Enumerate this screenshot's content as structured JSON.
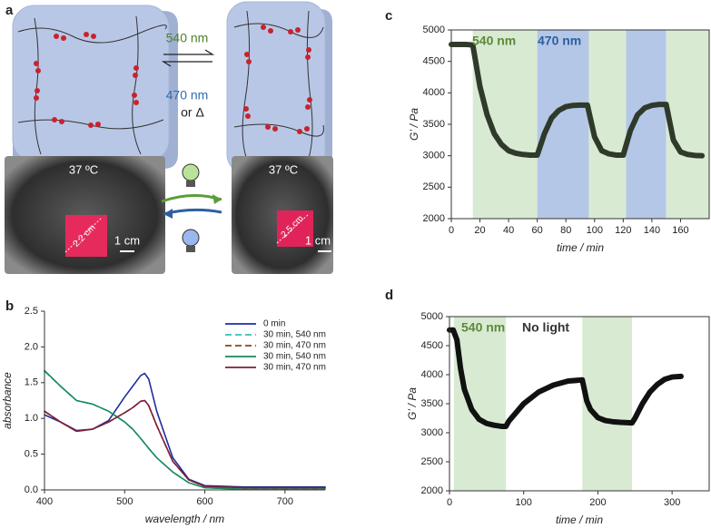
{
  "panel_labels": [
    "a",
    "b",
    "c",
    "d"
  ],
  "panel_a": {
    "forward_label": "540 nm",
    "reverse_label": "470 nm",
    "reverse_alt": "or Δ",
    "temperatures": [
      "37 ºC",
      "37 ºC"
    ],
    "sizes": [
      "2.2 cm",
      "2.5 cm"
    ],
    "scale_bars": [
      "1 cm",
      "1 cm"
    ]
  },
  "chart_data": [
    {
      "type": "line",
      "xlabel": "wavelength / nm",
      "ylabel": "absorbance",
      "x": [
        400,
        420,
        440,
        460,
        480,
        500,
        510,
        520,
        525,
        530,
        540,
        560,
        580,
        600,
        650,
        700,
        750
      ],
      "xlim": [
        400,
        750
      ],
      "xticks": [
        400,
        500,
        600,
        700
      ],
      "ylim": [
        0,
        2.5
      ],
      "yticks": [
        {
          "value": 0,
          "label": "0.0"
        },
        0.5,
        {
          "value": 1,
          "label": "1.0"
        },
        1.5,
        {
          "value": 2,
          "label": "2.0"
        },
        2.5
      ],
      "legend": "upper right",
      "series": [
        {
          "name": "0 min",
          "color": "#1f2ea0",
          "dashed": false,
          "values": [
            1.05,
            0.95,
            0.83,
            0.85,
            0.97,
            1.3,
            1.45,
            1.6,
            1.63,
            1.55,
            1.1,
            0.45,
            0.15,
            0.06,
            0.04,
            0.04,
            0.04
          ]
        },
        {
          "name": "30 min, 540 nm",
          "color": "#2ec4b6",
          "dashed": true,
          "values": [
            1.66,
            1.45,
            1.25,
            1.2,
            1.1,
            0.95,
            0.85,
            0.72,
            0.65,
            0.58,
            0.45,
            0.25,
            0.1,
            0.03,
            0.01,
            0.01,
            0.01
          ]
        },
        {
          "name": "30 min, 470 nm",
          "color": "#8b4513",
          "dashed": true,
          "values": [
            1.1,
            0.95,
            0.82,
            0.85,
            0.95,
            1.08,
            1.15,
            1.24,
            1.25,
            1.18,
            0.9,
            0.4,
            0.14,
            0.05,
            0.03,
            0.03,
            0.03
          ]
        },
        {
          "name": "30 min, 540 nm",
          "color": "#1a8a5a",
          "dashed": false,
          "values": [
            1.67,
            1.45,
            1.25,
            1.2,
            1.1,
            0.95,
            0.85,
            0.72,
            0.65,
            0.58,
            0.45,
            0.25,
            0.1,
            0.03,
            0.01,
            0.01,
            0.01
          ]
        },
        {
          "name": "30 min, 470 nm",
          "color": "#7b1f3a",
          "dashed": false,
          "values": [
            1.1,
            0.95,
            0.82,
            0.85,
            0.95,
            1.08,
            1.15,
            1.24,
            1.25,
            1.18,
            0.9,
            0.4,
            0.14,
            0.05,
            0.03,
            0.03,
            0.03
          ]
        }
      ]
    },
    {
      "type": "line",
      "xlabel": "time / min",
      "ylabel": "G’ / Pa",
      "color": "#2f3a2b",
      "x": [
        0,
        5,
        10,
        15,
        20,
        25,
        30,
        35,
        40,
        45,
        50,
        55,
        60,
        65,
        70,
        75,
        80,
        85,
        90,
        95,
        100,
        105,
        110,
        115,
        120,
        125,
        130,
        135,
        140,
        145,
        150,
        155,
        160,
        165,
        170,
        175
      ],
      "values": [
        4770,
        4770,
        4770,
        4760,
        4100,
        3650,
        3350,
        3180,
        3080,
        3040,
        3020,
        3010,
        3010,
        3350,
        3600,
        3720,
        3780,
        3800,
        3805,
        3805,
        3300,
        3080,
        3030,
        3010,
        3010,
        3400,
        3650,
        3760,
        3800,
        3815,
        3815,
        3250,
        3060,
        3020,
        3005,
        3000
      ],
      "xlim": [
        0,
        180
      ],
      "xticks": [
        0,
        20,
        40,
        60,
        80,
        100,
        120,
        140,
        160
      ],
      "ylim": [
        2000,
        5000
      ],
      "yticks": [
        2000,
        2500,
        3000,
        3500,
        4000,
        4500,
        5000
      ],
      "shading": [
        {
          "start": 15,
          "end": 60,
          "color": "#d9ead3"
        },
        {
          "start": 60,
          "end": 96,
          "color": "#b4c7e7"
        },
        {
          "start": 96,
          "end": 122,
          "color": "#d9ead3"
        },
        {
          "start": 122,
          "end": 150,
          "color": "#b4c7e7"
        },
        {
          "start": 150,
          "end": 180,
          "color": "#d9ead3"
        }
      ],
      "annotations": [
        {
          "text": "540 nm",
          "color": "#5b8a3a"
        },
        {
          "text": "470 nm",
          "color": "#2e5fa0"
        }
      ]
    },
    {
      "type": "line",
      "xlabel": "time / min",
      "ylabel": "G’ / Pa",
      "color": "#111111",
      "x": [
        0,
        5,
        10,
        15,
        20,
        30,
        40,
        50,
        60,
        70,
        76,
        80,
        90,
        100,
        120,
        140,
        160,
        179,
        185,
        190,
        200,
        210,
        220,
        230,
        246,
        250,
        260,
        270,
        280,
        290,
        300,
        312
      ],
      "values": [
        4770,
        4770,
        4600,
        4100,
        3750,
        3400,
        3230,
        3160,
        3130,
        3110,
        3110,
        3200,
        3350,
        3500,
        3700,
        3820,
        3890,
        3910,
        3550,
        3400,
        3260,
        3210,
        3190,
        3180,
        3170,
        3250,
        3500,
        3700,
        3830,
        3920,
        3960,
        3970
      ],
      "xlim": [
        0,
        350
      ],
      "xticks": [
        0,
        100,
        200,
        300
      ],
      "ylim": [
        2000,
        5000
      ],
      "yticks": [
        2000,
        2500,
        3000,
        3500,
        4000,
        4500,
        5000
      ],
      "shading": [
        {
          "start": 6,
          "end": 76,
          "color": "#d9ead3"
        },
        {
          "start": 179,
          "end": 246,
          "color": "#d9ead3"
        }
      ],
      "annotations": [
        {
          "text": "540 nm",
          "color": "#5b8a3a"
        },
        {
          "text": "No light",
          "color": "#333333"
        }
      ]
    }
  ]
}
